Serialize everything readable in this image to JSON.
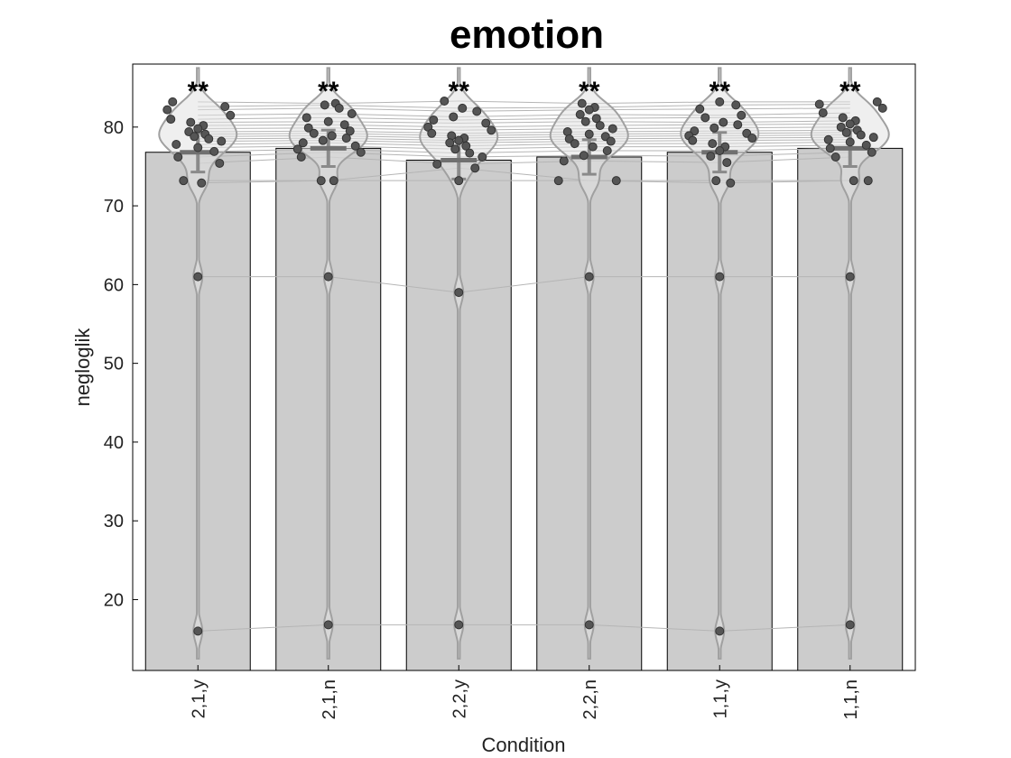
{
  "chart_data": {
    "type": "bar",
    "title": "emotion",
    "xlabel": "Condition",
    "ylabel": "negloglik",
    "ylim": [
      11,
      88
    ],
    "yticks": [
      20,
      30,
      40,
      50,
      60,
      70,
      80
    ],
    "grid": false,
    "categories": [
      "2,1,y",
      "2,1,n",
      "2,2,y",
      "2,2,n",
      "1,1,y",
      "1,1,n"
    ],
    "values": [
      76.8,
      77.3,
      75.8,
      76.2,
      76.8,
      77.3
    ],
    "error": [
      2.5,
      2.3,
      2.4,
      2.2,
      2.5,
      2.3
    ],
    "significance": [
      "**",
      "**",
      "**",
      "**",
      "**",
      "**"
    ],
    "bar_color": "#cccccc",
    "point_color": "#555555",
    "violin_color": "#a0a0a0",
    "subjects": [
      [
        83.2,
        83.0,
        83.3,
        83.0,
        83.2,
        83.2
      ],
      [
        82.6,
        82.8,
        82.4,
        82.5,
        82.8,
        82.9
      ],
      [
        82.2,
        82.4,
        82.0,
        82.2,
        82.3,
        82.4
      ],
      [
        81.5,
        81.7,
        81.3,
        81.6,
        81.5,
        81.8
      ],
      [
        81.0,
        81.2,
        80.9,
        81.1,
        81.2,
        81.2
      ],
      [
        80.6,
        80.7,
        80.5,
        80.7,
        80.6,
        80.8
      ],
      [
        80.2,
        80.3,
        80.0,
        80.2,
        80.3,
        80.4
      ],
      [
        79.8,
        79.9,
        79.6,
        79.8,
        79.9,
        80.0
      ],
      [
        79.4,
        79.5,
        79.2,
        79.4,
        79.5,
        79.6
      ],
      [
        79.1,
        79.2,
        78.9,
        79.1,
        79.2,
        79.3
      ],
      [
        78.8,
        78.9,
        78.6,
        78.8,
        78.9,
        79.0
      ],
      [
        78.5,
        78.6,
        78.3,
        78.5,
        78.6,
        78.7
      ],
      [
        78.2,
        78.3,
        78.0,
        78.2,
        78.3,
        78.4
      ],
      [
        77.8,
        78.0,
        77.6,
        77.9,
        77.9,
        78.1
      ],
      [
        77.4,
        77.6,
        77.2,
        77.5,
        77.5,
        77.7
      ],
      [
        76.9,
        77.2,
        76.7,
        77.0,
        77.0,
        77.3
      ],
      [
        76.2,
        76.8,
        76.2,
        76.4,
        76.3,
        76.8
      ],
      [
        75.4,
        76.2,
        75.3,
        75.7,
        75.5,
        76.2
      ],
      [
        73.2,
        73.2,
        73.2,
        73.2,
        73.2,
        73.2
      ],
      [
        72.9,
        73.2,
        74.8,
        73.2,
        72.9,
        73.2
      ],
      [
        61.0,
        61.0,
        59.0,
        61.0,
        61.0,
        61.0
      ],
      [
        16.0,
        16.8,
        16.8,
        16.8,
        16.0,
        16.8
      ]
    ]
  }
}
